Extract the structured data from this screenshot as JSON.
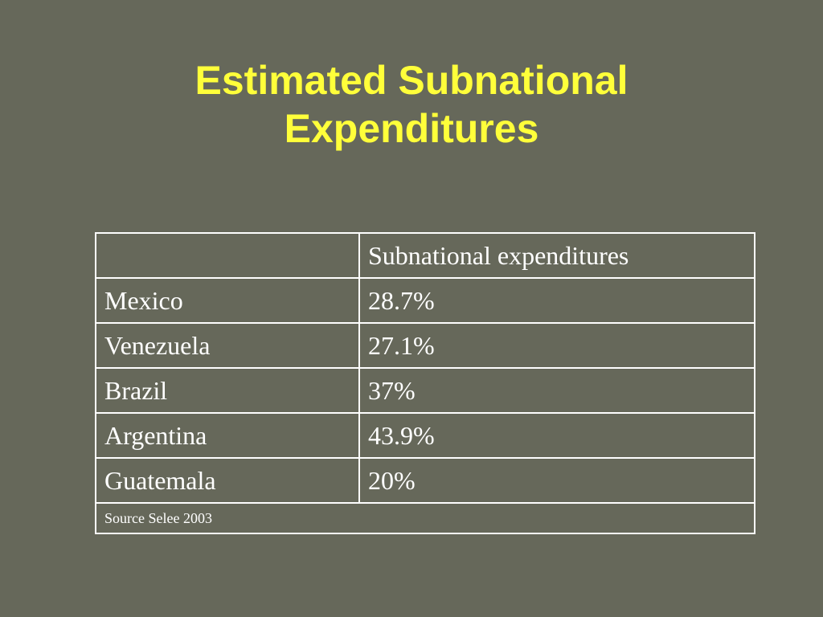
{
  "slide": {
    "title_line1": "Estimated Subnational",
    "title_line2": "Expenditures"
  },
  "table": {
    "header": {
      "col1": "",
      "col2": "Subnational expenditures"
    },
    "rows": [
      {
        "country": "Mexico",
        "value": "28.7%"
      },
      {
        "country": "Venezuela",
        "value": "27.1%"
      },
      {
        "country": "Brazil",
        "value": "37%"
      },
      {
        "country": "Argentina",
        "value": "43.9%"
      },
      {
        "country": "Guatemala",
        "value": "20%"
      }
    ],
    "source": "Source Selee 2003"
  },
  "colors": {
    "background": "#66685a",
    "title": "#ffff3a",
    "text": "#ffffff",
    "border": "#ffffff"
  }
}
